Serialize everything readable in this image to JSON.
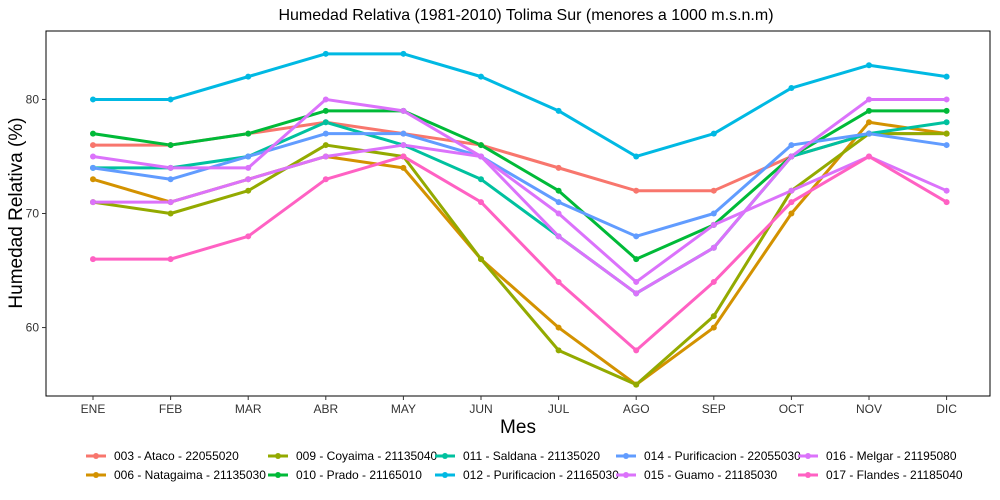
{
  "chart_data": {
    "type": "line",
    "title": "Humedad Relativa (1981-2010) Tolima Sur (menores a 1000 m.s.n.m)",
    "xlabel": "Mes",
    "ylabel": "Humedad Relativa (%)",
    "categories": [
      "ENE",
      "FEB",
      "MAR",
      "ABR",
      "MAY",
      "JUN",
      "JUL",
      "AGO",
      "SEP",
      "OCT",
      "NOV",
      "DIC"
    ],
    "ylim": [
      54,
      86
    ],
    "yticks": [
      60,
      70,
      80
    ],
    "grid": false,
    "legend_position": "bottom",
    "series": [
      {
        "name": "003 - Ataco - 22055020",
        "color": "#F8766D",
        "values": [
          76,
          76,
          77,
          78,
          77,
          76,
          74,
          72,
          72,
          75,
          77,
          77
        ]
      },
      {
        "name": "006 - Natagaima - 21135030",
        "color": "#D39200",
        "values": [
          73,
          71,
          73,
          75,
          74,
          66,
          60,
          55,
          60,
          70,
          78,
          77
        ]
      },
      {
        "name": "009 - Coyaima - 21135040",
        "color": "#93AA00",
        "values": [
          71,
          70,
          72,
          76,
          75,
          66,
          58,
          55,
          61,
          72,
          77,
          77
        ]
      },
      {
        "name": "010 - Prado - 21165010",
        "color": "#00BA38",
        "values": [
          77,
          76,
          77,
          79,
          79,
          76,
          72,
          66,
          69,
          75,
          79,
          79
        ]
      },
      {
        "name": "011 - Saldana - 21135020",
        "color": "#00C19F",
        "values": [
          74,
          74,
          75,
          78,
          76,
          73,
          68,
          63,
          67,
          75,
          77,
          78
        ]
      },
      {
        "name": "012 - Purificacion - 21165030",
        "color": "#00B9E3",
        "values": [
          80,
          80,
          82,
          84,
          84,
          82,
          79,
          75,
          77,
          81,
          83,
          82
        ]
      },
      {
        "name": "014 - Purificacion - 22055030",
        "color": "#619CFF",
        "values": [
          74,
          73,
          75,
          77,
          77,
          75,
          71,
          68,
          70,
          76,
          77,
          76
        ]
      },
      {
        "name": "015 - Guamo - 21185030",
        "color": "#DB72FB",
        "values": [
          75,
          74,
          74,
          80,
          79,
          75,
          68,
          63,
          67,
          75,
          80,
          80
        ]
      },
      {
        "name": "016 - Melgar - 21195080",
        "color": "#DB72FB",
        "values": [
          71,
          71,
          73,
          75,
          76,
          75,
          70,
          64,
          69,
          72,
          75,
          72
        ]
      },
      {
        "name": "017 - Flandes - 21185040",
        "color": "#FF61C3",
        "values": [
          66,
          66,
          68,
          73,
          75,
          71,
          64,
          58,
          64,
          71,
          75,
          71
        ]
      }
    ]
  }
}
